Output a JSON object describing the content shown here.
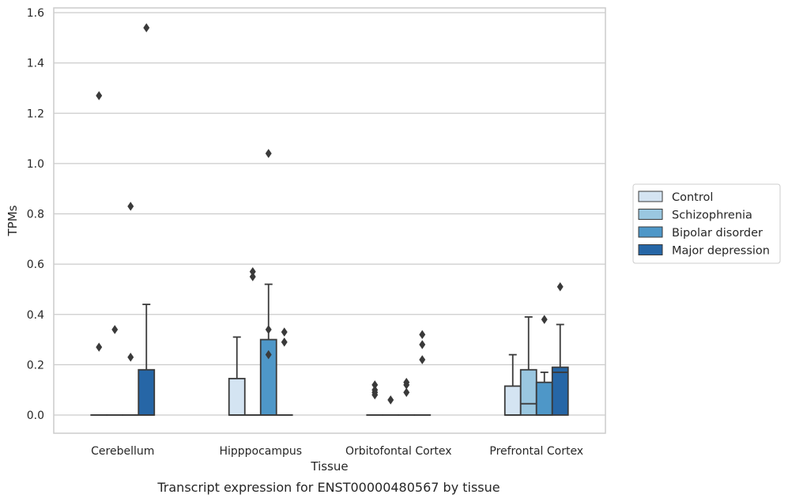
{
  "caption": "Transcript expression for ENST00000480567 by tissue",
  "colors": {
    "Control": "#d4e4f2",
    "Schizophrenia": "#9ac7e0",
    "Bipolar disorder": "#4e97c8",
    "Major depression": "#2666a6",
    "grid": "#cccccc",
    "edge": "#3a3a3a"
  },
  "chart_data": {
    "type": "box",
    "xlabel": "Tissue",
    "ylabel": "TPMs",
    "ylim": [
      -0.075,
      1.62
    ],
    "yticks": [
      0.0,
      0.2,
      0.4,
      0.6,
      0.8,
      1.0,
      1.2,
      1.4,
      1.6
    ],
    "ytick_labels": [
      "0.0",
      "0.2",
      "0.4",
      "0.6",
      "0.8",
      "1.0",
      "1.2",
      "1.4",
      "1.6"
    ],
    "grid": "horizontal",
    "legend_position": "right",
    "categories": [
      "Cerebellum",
      "Hipppocampus",
      "Orbitofontal Cortex",
      "Prefrontal Cortex"
    ],
    "series": [
      {
        "name": "Control",
        "boxes": [
          {
            "q1": 0.0,
            "median": 0.0,
            "q3": 0.0,
            "whislo": 0.0,
            "whishi": 0.0,
            "fliers": [
              0.27,
              1.27
            ]
          },
          {
            "q1": 0.0,
            "median": 0.0,
            "q3": 0.145,
            "whislo": 0.0,
            "whishi": 0.31,
            "fliers": []
          },
          {
            "q1": 0.0,
            "median": 0.0,
            "q3": 0.0,
            "whislo": 0.0,
            "whishi": 0.0,
            "fliers": [
              0.08,
              0.09,
              0.1,
              0.12
            ]
          },
          {
            "q1": 0.0,
            "median": 0.0,
            "q3": 0.115,
            "whislo": 0.0,
            "whishi": 0.24,
            "fliers": []
          }
        ]
      },
      {
        "name": "Schizophrenia",
        "boxes": [
          {
            "q1": 0.0,
            "median": 0.0,
            "q3": 0.0,
            "whislo": 0.0,
            "whishi": 0.0,
            "fliers": [
              0.34
            ]
          },
          {
            "q1": 0.0,
            "median": 0.0,
            "q3": 0.0,
            "whislo": 0.0,
            "whishi": 0.0,
            "fliers": [
              0.55,
              0.57
            ]
          },
          {
            "q1": 0.0,
            "median": 0.0,
            "q3": 0.0,
            "whislo": 0.0,
            "whishi": 0.0,
            "fliers": [
              0.06
            ]
          },
          {
            "q1": 0.0,
            "median": 0.045,
            "q3": 0.18,
            "whislo": 0.0,
            "whishi": 0.39,
            "fliers": []
          }
        ]
      },
      {
        "name": "Bipolar disorder",
        "boxes": [
          {
            "q1": 0.0,
            "median": 0.0,
            "q3": 0.0,
            "whislo": 0.0,
            "whishi": 0.0,
            "fliers": [
              0.23,
              0.83
            ]
          },
          {
            "q1": 0.0,
            "median": 0.0,
            "q3": 0.3,
            "whislo": 0.0,
            "whishi": 0.52,
            "fliers": [
              0.24,
              0.34,
              1.04
            ]
          },
          {
            "q1": 0.0,
            "median": 0.0,
            "q3": 0.0,
            "whislo": 0.0,
            "whishi": 0.0,
            "fliers": [
              0.09,
              0.12,
              0.13
            ]
          },
          {
            "q1": 0.0,
            "median": 0.0,
            "q3": 0.13,
            "whislo": 0.0,
            "whishi": 0.17,
            "fliers": [
              0.38
            ]
          }
        ]
      },
      {
        "name": "Major depression",
        "boxes": [
          {
            "q1": 0.0,
            "median": 0.0,
            "q3": 0.18,
            "whislo": 0.0,
            "whishi": 0.44,
            "fliers": [
              1.54
            ]
          },
          {
            "q1": 0.0,
            "median": 0.0,
            "q3": 0.0,
            "whislo": 0.0,
            "whishi": 0.0,
            "fliers": [
              0.29,
              0.33
            ]
          },
          {
            "q1": 0.0,
            "median": 0.0,
            "q3": 0.0,
            "whislo": 0.0,
            "whishi": 0.0,
            "fliers": [
              0.22,
              0.28,
              0.32
            ]
          },
          {
            "q1": 0.0,
            "median": 0.17,
            "q3": 0.19,
            "whislo": 0.0,
            "whishi": 0.36,
            "fliers": [
              0.51
            ]
          }
        ]
      }
    ]
  }
}
